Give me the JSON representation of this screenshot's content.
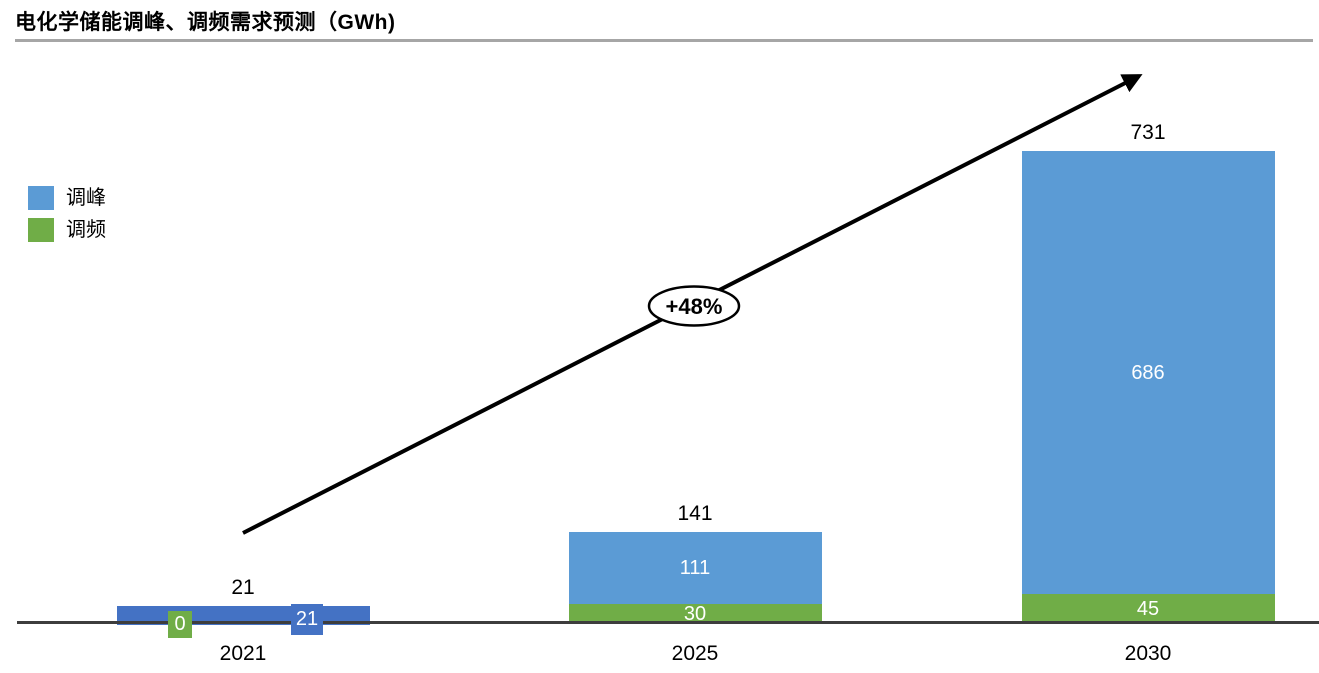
{
  "title": "电化学储能调峰、调频需求预测（GWh)",
  "chart_data": {
    "type": "bar",
    "stacked": true,
    "title": "电化学储能调峰、调频需求预测（GWh)",
    "unit": "GWh",
    "categories": [
      "2021",
      "2025",
      "2030"
    ],
    "series": [
      {
        "name": "调峰",
        "color": "#5B9BD5",
        "values": [
          21,
          111,
          686
        ]
      },
      {
        "name": "调频",
        "color": "#70AD47",
        "values": [
          0,
          30,
          45
        ]
      }
    ],
    "stack_order_bottom_to_top": [
      "调频",
      "调峰"
    ],
    "totals": [
      21,
      141,
      731
    ],
    "annotation": "+48%",
    "legend": [
      "调峰",
      "调频"
    ],
    "legend_position": "upper-left",
    "label_color_inside": "#FFFFFF",
    "label_color_outside": "#000000",
    "axis_color": "#3D3D3D",
    "title_rule_color": "#A6A6A6",
    "arrow_color": "#000000",
    "segment_color_overrides": [
      {
        "category": "2021",
        "series": "调峰",
        "color": "#4472C4"
      }
    ],
    "ylim": [
      0,
      780
    ],
    "grid": false
  }
}
